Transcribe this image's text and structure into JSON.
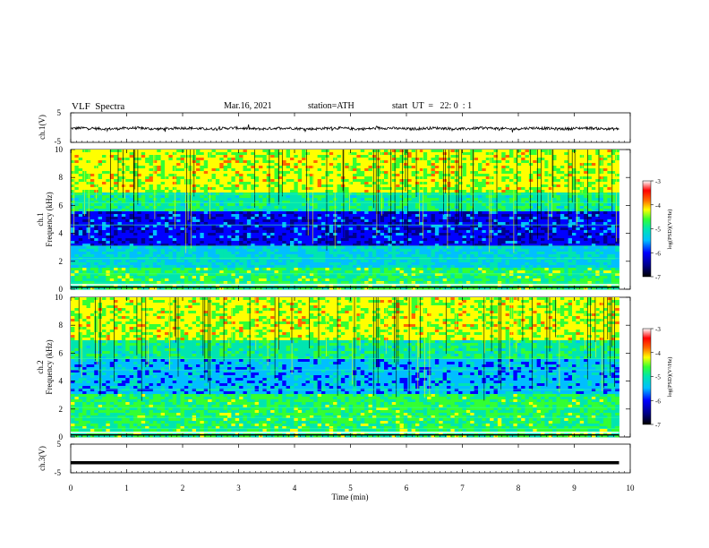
{
  "header": {
    "title": "VLF  Spectra",
    "date": "Mar.16, 2021",
    "station": "station=ATH",
    "start": "start  UT  =   22: 0  : 1"
  },
  "colors": {
    "trace": "#000000",
    "colormap": [
      "#000000",
      "#00008b",
      "#0000ff",
      "#00bfff",
      "#00e5b0",
      "#33ff33",
      "#ffff00",
      "#ff6600",
      "#ff0000",
      "#ffffff"
    ]
  },
  "chart_data": [
    {
      "type": "line",
      "id": "ch1",
      "ylabel": "ch.1(V)",
      "ylim": [
        -5,
        5
      ],
      "yticks": [
        "5",
        "-5"
      ],
      "xlim": [
        0,
        10
      ],
      "description_level": "noisy waveform near 0 V, small amplitude with occasional spikes"
    },
    {
      "type": "heatmap",
      "id": "ch1_spec",
      "ylabel": "ch.1\nFrequency  (kHz)",
      "ylabel_lines": [
        "ch.1",
        "Frequency  (kHz)"
      ],
      "ylim": [
        0,
        10
      ],
      "yticks": [
        "0",
        "2",
        "4",
        "6",
        "8",
        "10"
      ],
      "xlim": [
        0,
        10
      ],
      "data_end_min": 9.8,
      "colorbar": {
        "label": "log(PSD)(V²/Hz)",
        "range": [
          -7,
          -3
        ],
        "ticks": [
          "-3",
          "-4",
          "-5",
          "-6",
          "-7"
        ]
      }
    },
    {
      "type": "heatmap",
      "id": "ch2_spec",
      "ylabel": "ch.2\nFrequency  (kHz)",
      "ylabel_lines": [
        "ch.2",
        "Frequency  (kHz)"
      ],
      "ylim": [
        0,
        10
      ],
      "yticks": [
        "0",
        "2",
        "4",
        "6",
        "8",
        "10"
      ],
      "xlim": [
        0,
        10
      ],
      "data_end_min": 9.8,
      "colorbar": {
        "label": "log(PSD)(V²/Hz)",
        "range": [
          -7,
          -3
        ],
        "ticks": [
          "-3",
          "-4",
          "-5",
          "-6",
          "-7"
        ]
      }
    },
    {
      "type": "line",
      "id": "ch3",
      "ylabel": "ch.3(V)",
      "ylim": [
        -5,
        5
      ],
      "yticks": [
        "5",
        "-5"
      ],
      "xlim": [
        0,
        10
      ],
      "level": -1.5,
      "data_end_min": 9.8
    }
  ],
  "xaxis": {
    "label": "Time  (min)",
    "ticks": [
      "0",
      "1",
      "2",
      "3",
      "4",
      "5",
      "6",
      "7",
      "8",
      "9",
      "10"
    ]
  }
}
